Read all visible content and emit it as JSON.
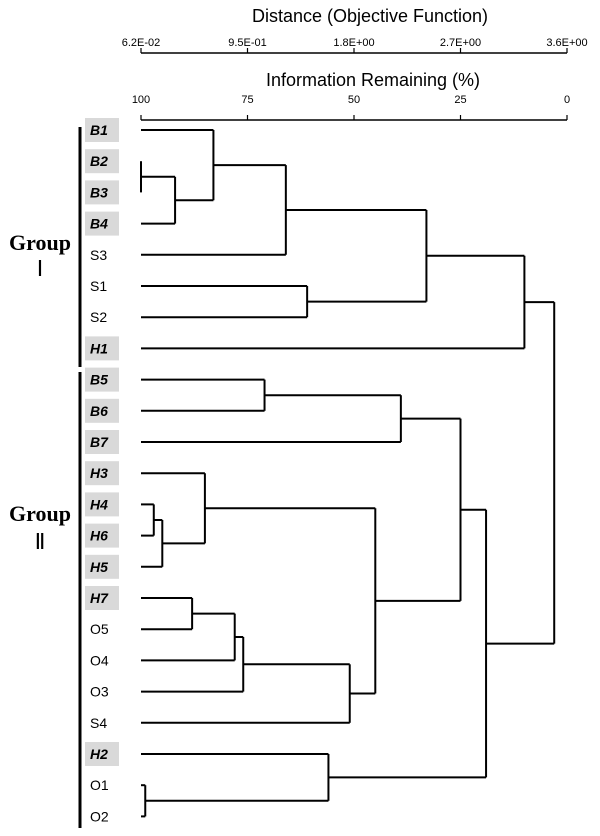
{
  "axes": {
    "distance": {
      "title": "Distance (Objective Function)",
      "ticks": [
        "6.2E-02",
        "9.5E-01",
        "1.8E+00",
        "2.7E+00",
        "3.6E+00"
      ]
    },
    "info": {
      "title": "Information Remaining (%)",
      "ticks": [
        "100",
        "75",
        "50",
        "25",
        "0"
      ]
    }
  },
  "groups": [
    {
      "word": "Group",
      "numeral": "Ⅰ"
    },
    {
      "word": "Group",
      "numeral": "Ⅱ"
    }
  ],
  "leaves": [
    {
      "label": "B1",
      "highlight": true
    },
    {
      "label": "B2",
      "highlight": true
    },
    {
      "label": "B3",
      "highlight": true
    },
    {
      "label": "B4",
      "highlight": true
    },
    {
      "label": "S3",
      "highlight": false
    },
    {
      "label": "S1",
      "highlight": false
    },
    {
      "label": "S2",
      "highlight": false
    },
    {
      "label": "H1",
      "highlight": true
    },
    {
      "label": "B5",
      "highlight": true
    },
    {
      "label": "B6",
      "highlight": true
    },
    {
      "label": "B7",
      "highlight": true
    },
    {
      "label": "H3",
      "highlight": true
    },
    {
      "label": "H4",
      "highlight": true
    },
    {
      "label": "H6",
      "highlight": true
    },
    {
      "label": "H5",
      "highlight": true
    },
    {
      "label": "H7",
      "highlight": true
    },
    {
      "label": "O5",
      "highlight": false
    },
    {
      "label": "O4",
      "highlight": false
    },
    {
      "label": "O3",
      "highlight": false
    },
    {
      "label": "S4",
      "highlight": false
    },
    {
      "label": "H2",
      "highlight": true
    },
    {
      "label": "O1",
      "highlight": false
    },
    {
      "label": "O2",
      "highlight": false
    }
  ],
  "tree": {
    "info_remaining": 3,
    "children": [
      {
        "info_remaining": 10,
        "children": [
          {
            "info_remaining": 33,
            "children": [
              {
                "info_remaining": 66,
                "children": [
                  {
                    "info_remaining": 83,
                    "children": [
                      {
                        "leaf": 0
                      },
                      {
                        "info_remaining": 92,
                        "children": [
                          {
                            "info_remaining": 100,
                            "children": [
                              {
                                "leaf": 1
                              },
                              {
                                "leaf": 2
                              }
                            ]
                          },
                          {
                            "leaf": 3
                          }
                        ]
                      }
                    ]
                  },
                  {
                    "leaf": 4
                  }
                ]
              },
              {
                "info_remaining": 61,
                "children": [
                  {
                    "leaf": 5
                  },
                  {
                    "leaf": 6
                  }
                ]
              }
            ]
          },
          {
            "leaf": 7
          }
        ]
      },
      {
        "info_remaining": 19,
        "children": [
          {
            "info_remaining": 25,
            "children": [
              {
                "info_remaining": 39,
                "children": [
                  {
                    "info_remaining": 71,
                    "children": [
                      {
                        "leaf": 8
                      },
                      {
                        "leaf": 9
                      }
                    ]
                  },
                  {
                    "leaf": 10
                  }
                ]
              },
              {
                "info_remaining": 45,
                "children": [
                  {
                    "info_remaining": 85,
                    "children": [
                      {
                        "leaf": 11
                      },
                      {
                        "info_remaining": 95,
                        "children": [
                          {
                            "info_remaining": 97,
                            "children": [
                              {
                                "leaf": 12
                              },
                              {
                                "leaf": 13
                              }
                            ]
                          },
                          {
                            "leaf": 14
                          }
                        ]
                      }
                    ]
                  },
                  {
                    "info_remaining": 51,
                    "children": [
                      {
                        "info_remaining": 76,
                        "children": [
                          {
                            "info_remaining": 78,
                            "children": [
                              {
                                "info_remaining": 88,
                                "children": [
                                  {
                                    "leaf": 15
                                  },
                                  {
                                    "leaf": 16
                                  }
                                ]
                              },
                              {
                                "leaf": 17
                              }
                            ]
                          },
                          {
                            "leaf": 18
                          }
                        ]
                      },
                      {
                        "leaf": 19
                      }
                    ]
                  }
                ]
              }
            ]
          },
          {
            "info_remaining": 56,
            "children": [
              {
                "leaf": 20
              },
              {
                "info_remaining": 99,
                "children": [
                  {
                    "leaf": 21
                  },
                  {
                    "leaf": 22
                  }
                ]
              }
            ]
          }
        ]
      }
    ]
  }
}
